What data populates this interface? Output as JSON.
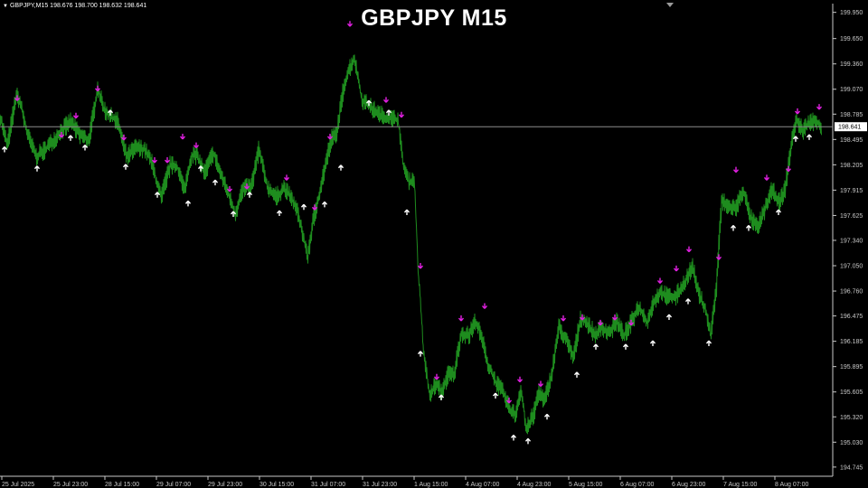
{
  "info": {
    "triangle": "▼",
    "text": "GBPJPY,M15  198.676 198.700 198.632 198.641"
  },
  "title": "GBPJPY M15",
  "colors": {
    "background": "#000000",
    "price": "#1e8c1e",
    "axis": "#c8c8c8",
    "up_arrow": "#ffffff",
    "down_arrow": "#e020e0",
    "current_line": "#8c8c8c"
  },
  "chart_data": {
    "type": "line",
    "title": "GBPJPY M15",
    "ylim": [
      194.64,
      200.05
    ],
    "y_ticks": [
      "199.950",
      "199.650",
      "199.360",
      "199.070",
      "198.785",
      "198.495",
      "198.205",
      "197.915",
      "197.625",
      "197.340",
      "197.050",
      "196.760",
      "196.475",
      "196.185",
      "195.895",
      "195.605",
      "195.320",
      "195.030",
      "194.745"
    ],
    "x_ticks": [
      "25 Jul 2025",
      "25 Jul 23:00",
      "28 Jul 15:00",
      "29 Jul 07:00",
      "29 Jul 23:00",
      "30 Jul 15:00",
      "31 Jul 07:00",
      "31 Jul 23:00",
      "1 Aug 15:00",
      "4 Aug 07:00",
      "4 Aug 23:00",
      "5 Aug 15:00",
      "6 Aug 07:00",
      "6 Aug 23:00",
      "7 Aug 15:00",
      "8 Aug 07:00"
    ],
    "current_price": "198.641",
    "series": [
      {
        "values": [
          [
            0,
            198.76
          ],
          [
            8,
            198.42
          ],
          [
            18,
            199.0
          ],
          [
            22,
            198.92
          ],
          [
            30,
            198.56
          ],
          [
            40,
            198.3
          ],
          [
            50,
            198.38
          ],
          [
            60,
            198.5
          ],
          [
            68,
            198.6
          ],
          [
            78,
            198.7
          ],
          [
            88,
            198.55
          ],
          [
            98,
            198.48
          ],
          [
            108,
            199.08
          ],
          [
            115,
            198.84
          ],
          [
            122,
            198.76
          ],
          [
            130,
            198.7
          ],
          [
            140,
            198.3
          ],
          [
            150,
            198.4
          ],
          [
            160,
            198.38
          ],
          [
            168,
            198.22
          ],
          [
            178,
            197.82
          ],
          [
            188,
            198.2
          ],
          [
            196,
            198.18
          ],
          [
            204,
            197.92
          ],
          [
            212,
            198.32
          ],
          [
            218,
            198.3
          ],
          [
            226,
            198.12
          ],
          [
            236,
            198.34
          ],
          [
            244,
            198.1
          ],
          [
            252,
            197.88
          ],
          [
            260,
            197.64
          ],
          [
            268,
            197.92
          ],
          [
            278,
            197.96
          ],
          [
            286,
            198.38
          ],
          [
            296,
            197.94
          ],
          [
            306,
            197.84
          ],
          [
            314,
            197.94
          ],
          [
            322,
            197.82
          ],
          [
            330,
            197.64
          ],
          [
            340,
            197.14
          ],
          [
            346,
            197.55
          ],
          [
            352,
            197.82
          ],
          [
            358,
            198.12
          ],
          [
            366,
            198.5
          ],
          [
            372,
            198.55
          ],
          [
            380,
            199.1
          ],
          [
            386,
            199.3
          ],
          [
            392,
            199.42
          ],
          [
            400,
            198.95
          ],
          [
            410,
            198.86
          ],
          [
            420,
            198.78
          ],
          [
            430,
            198.74
          ],
          [
            440,
            198.72
          ],
          [
            446,
            198.2
          ],
          [
            452,
            198.0
          ],
          [
            458,
            198.05
          ],
          [
            462,
            197.05
          ],
          [
            468,
            196.1
          ],
          [
            475,
            195.55
          ],
          [
            482,
            195.7
          ],
          [
            488,
            195.6
          ],
          [
            496,
            195.82
          ],
          [
            502,
            195.8
          ],
          [
            510,
            196.28
          ],
          [
            518,
            196.25
          ],
          [
            526,
            196.42
          ],
          [
            534,
            196.18
          ],
          [
            540,
            195.9
          ],
          [
            548,
            195.72
          ],
          [
            556,
            195.6
          ],
          [
            564,
            195.4
          ],
          [
            570,
            195.34
          ],
          [
            576,
            195.65
          ],
          [
            582,
            195.16
          ],
          [
            590,
            195.35
          ],
          [
            596,
            195.62
          ],
          [
            602,
            195.5
          ],
          [
            610,
            195.8
          ],
          [
            618,
            196.35
          ],
          [
            626,
            196.2
          ],
          [
            634,
            196.0
          ],
          [
            642,
            196.45
          ],
          [
            650,
            196.38
          ],
          [
            658,
            196.26
          ],
          [
            666,
            196.34
          ],
          [
            674,
            196.28
          ],
          [
            682,
            196.42
          ],
          [
            690,
            196.25
          ],
          [
            698,
            196.4
          ],
          [
            706,
            196.58
          ],
          [
            716,
            196.4
          ],
          [
            722,
            196.62
          ],
          [
            730,
            196.75
          ],
          [
            738,
            196.7
          ],
          [
            746,
            196.68
          ],
          [
            754,
            196.8
          ],
          [
            760,
            196.92
          ],
          [
            766,
            197.05
          ],
          [
            772,
            196.75
          ],
          [
            780,
            196.55
          ],
          [
            786,
            196.25
          ],
          [
            792,
            196.8
          ],
          [
            798,
            197.8
          ],
          [
            806,
            197.72
          ],
          [
            814,
            197.72
          ],
          [
            822,
            197.92
          ],
          [
            830,
            197.6
          ],
          [
            838,
            197.48
          ],
          [
            846,
            197.7
          ],
          [
            854,
            197.92
          ],
          [
            862,
            197.78
          ],
          [
            868,
            197.92
          ],
          [
            874,
            198.36
          ],
          [
            880,
            198.72
          ],
          [
            888,
            198.6
          ],
          [
            896,
            198.7
          ],
          [
            904,
            198.7
          ],
          [
            908,
            198.64
          ]
        ]
      }
    ],
    "up_arrows": [
      [
        5,
        198.38
      ],
      [
        41,
        198.16
      ],
      [
        78,
        198.51
      ],
      [
        94,
        198.4
      ],
      [
        122,
        198.8
      ],
      [
        139,
        198.18
      ],
      [
        174,
        197.86
      ],
      [
        208,
        197.76
      ],
      [
        222,
        198.16
      ],
      [
        238,
        198.0
      ],
      [
        258,
        197.64
      ],
      [
        276,
        197.86
      ],
      [
        309,
        197.65
      ],
      [
        336,
        197.72
      ],
      [
        359,
        197.75
      ],
      [
        377,
        198.17
      ],
      [
        408,
        198.91
      ],
      [
        430,
        198.8
      ],
      [
        450,
        197.66
      ],
      [
        465,
        196.04
      ],
      [
        488,
        195.54
      ],
      [
        548,
        195.56
      ],
      [
        568,
        195.08
      ],
      [
        584,
        195.04
      ],
      [
        605,
        195.32
      ],
      [
        638,
        195.8
      ],
      [
        659,
        196.12
      ],
      [
        692,
        196.12
      ],
      [
        722,
        196.16
      ],
      [
        740,
        196.46
      ],
      [
        761,
        196.64
      ],
      [
        784,
        196.16
      ],
      [
        811,
        197.48
      ],
      [
        828,
        197.48
      ],
      [
        861,
        197.66
      ],
      [
        880,
        198.5
      ],
      [
        895,
        198.52
      ]
    ],
    "down_arrows": [
      [
        19,
        198.97
      ],
      [
        68,
        198.55
      ],
      [
        84,
        198.77
      ],
      [
        108,
        199.08
      ],
      [
        137,
        198.52
      ],
      [
        171,
        198.26
      ],
      [
        185,
        198.26
      ],
      [
        202,
        198.53
      ],
      [
        217,
        198.43
      ],
      [
        254,
        197.93
      ],
      [
        273,
        197.96
      ],
      [
        317,
        198.06
      ],
      [
        348,
        197.72
      ],
      [
        365,
        198.53
      ],
      [
        387,
        199.82
      ],
      [
        427,
        198.95
      ],
      [
        444,
        198.78
      ],
      [
        465,
        197.05
      ],
      [
        483,
        195.78
      ],
      [
        510,
        196.45
      ],
      [
        536,
        196.59
      ],
      [
        563,
        195.51
      ],
      [
        575,
        195.75
      ],
      [
        598,
        195.7
      ],
      [
        623,
        196.45
      ],
      [
        644,
        196.46
      ],
      [
        664,
        196.4
      ],
      [
        680,
        196.46
      ],
      [
        698,
        196.4
      ],
      [
        730,
        196.88
      ],
      [
        748,
        197.02
      ],
      [
        762,
        197.24
      ],
      [
        795,
        197.15
      ],
      [
        814,
        198.15
      ],
      [
        848,
        198.06
      ],
      [
        872,
        198.16
      ],
      [
        882,
        198.82
      ],
      [
        906,
        198.87
      ]
    ]
  }
}
